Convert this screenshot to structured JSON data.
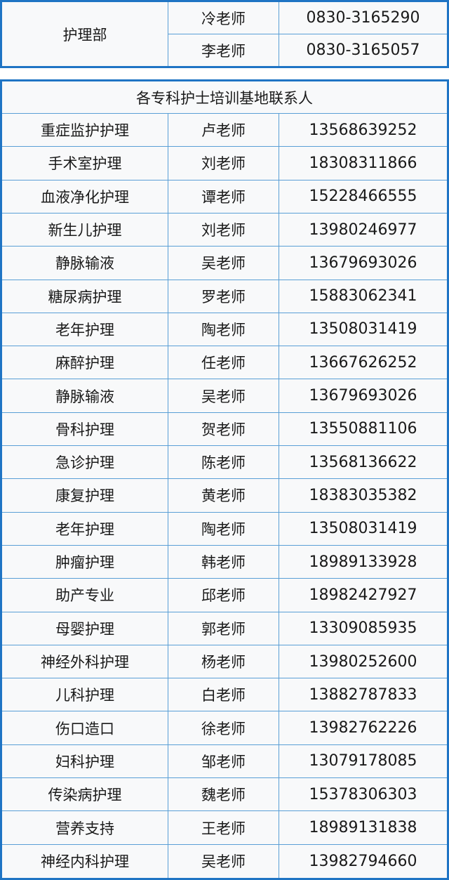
{
  "department": {
    "name": "护理部",
    "contacts": [
      {
        "name": "冷老师",
        "phone": "0830-3165290"
      },
      {
        "name": "李老师",
        "phone": "0830-3165057"
      }
    ]
  },
  "specialty": {
    "title": "各专科护士培训基地联系人",
    "rows": [
      {
        "field": "重症监护护理",
        "name": "卢老师",
        "phone": "13568639252"
      },
      {
        "field": "手术室护理",
        "name": "刘老师",
        "phone": "18308311866"
      },
      {
        "field": "血液净化护理",
        "name": "谭老师",
        "phone": "15228466555"
      },
      {
        "field": "新生儿护理",
        "name": "刘老师",
        "phone": "13980246977"
      },
      {
        "field": "静脉输液",
        "name": "吴老师",
        "phone": "13679693026"
      },
      {
        "field": "糖尿病护理",
        "name": "罗老师",
        "phone": "15883062341"
      },
      {
        "field": "老年护理",
        "name": "陶老师",
        "phone": "13508031419"
      },
      {
        "field": "麻醉护理",
        "name": "任老师",
        "phone": "13667626252"
      },
      {
        "field": "静脉输液",
        "name": "吴老师",
        "phone": "13679693026"
      },
      {
        "field": "骨科护理",
        "name": "贺老师",
        "phone": "13550881106"
      },
      {
        "field": "急诊护理",
        "name": "陈老师",
        "phone": "13568136622"
      },
      {
        "field": "康复护理",
        "name": "黄老师",
        "phone": "18383035382"
      },
      {
        "field": "老年护理",
        "name": "陶老师",
        "phone": "13508031419"
      },
      {
        "field": "肿瘤护理",
        "name": "韩老师",
        "phone": "18989133928"
      },
      {
        "field": "助产专业",
        "name": "邱老师",
        "phone": "18982427927"
      },
      {
        "field": "母婴护理",
        "name": "郭老师",
        "phone": "13309085935"
      },
      {
        "field": "神经外科护理",
        "name": "杨老师",
        "phone": "13980252600"
      },
      {
        "field": "儿科护理",
        "name": "白老师",
        "phone": "13882787833"
      },
      {
        "field": "伤口造口",
        "name": "徐老师",
        "phone": "13982762226"
      },
      {
        "field": "妇科护理",
        "name": "邹老师",
        "phone": "13079178085"
      },
      {
        "field": "传染病护理",
        "name": "魏老师",
        "phone": "15378306303"
      },
      {
        "field": "营养支持",
        "name": "王老师",
        "phone": "18989131838"
      },
      {
        "field": "神经内科护理",
        "name": "吴老师",
        "phone": "13982794660"
      }
    ]
  },
  "colors": {
    "border": "#1f74c4",
    "grid": "#5a9fd6",
    "background": "#f8f9fa"
  }
}
